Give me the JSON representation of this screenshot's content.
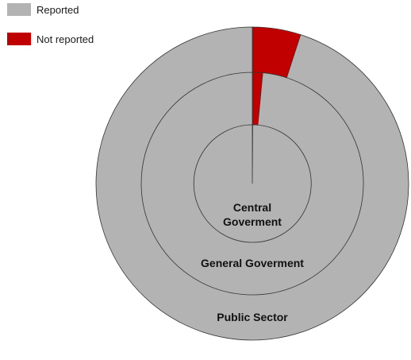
{
  "chart_data": {
    "type": "pie",
    "rings": [
      {
        "name": "Central Goverment",
        "label_lines": [
          "Central",
          "Goverment"
        ],
        "slices": [
          {
            "category": "Reported",
            "value": 99.9
          },
          {
            "category": "Not reported",
            "value": 0.1
          }
        ]
      },
      {
        "name": "General Goverment",
        "label_lines": [
          "General Goverment"
        ],
        "slices": [
          {
            "category": "Reported",
            "value": 98.5
          },
          {
            "category": "Not reported",
            "value": 1.5
          }
        ]
      },
      {
        "name": "Public Sector",
        "label_lines": [
          "Public Sector"
        ],
        "slices": [
          {
            "category": "Reported",
            "value": 95
          },
          {
            "category": "Not reported",
            "value": 5
          }
        ]
      }
    ],
    "legend": [
      {
        "label": "Reported",
        "color": "#b3b3b3"
      },
      {
        "label": "Not reported",
        "color": "#c00000"
      }
    ],
    "legend_position": "top-left"
  }
}
